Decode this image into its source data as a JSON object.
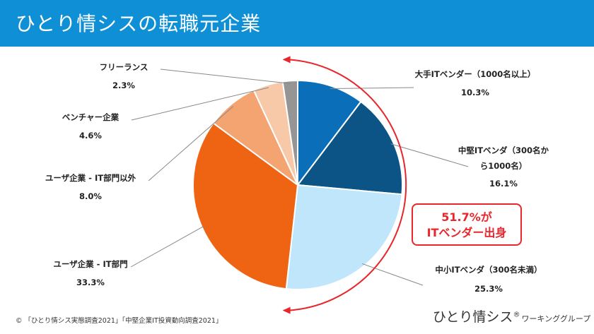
{
  "header": {
    "title": "ひとり情シスの転職元企業"
  },
  "chart_data": {
    "type": "pie",
    "title": "",
    "start_angle_deg": 0,
    "direction": "clockwise",
    "slices": [
      {
        "label": "大手ITベンダー（1000名以上）",
        "label_lines": [
          "大手ITベンダー（1000名以上）"
        ],
        "value": 10.3,
        "value_label": "10.3%",
        "color": "#0a6fb8"
      },
      {
        "label": "中堅ITベンダ（300名から1000名）",
        "label_lines": [
          "中堅ITベンダ（300名か",
          "ら1000名）"
        ],
        "value": 16.1,
        "value_label": "16.1%",
        "color": "#0b5485"
      },
      {
        "label": "中小ITベンダ（300名未満）",
        "label_lines": [
          "中小ITベンダ（300名未満）"
        ],
        "value": 25.3,
        "value_label": "25.3%",
        "color": "#bfe6fb"
      },
      {
        "label": "ユーザ企業 - IT部門",
        "label_lines": [
          "ユーザ企業 - IT部門"
        ],
        "value": 33.3,
        "value_label": "33.3%",
        "color": "#ee6413"
      },
      {
        "label": "ユーザ企業 - IT部門以外",
        "label_lines": [
          "ユーザ企業 - IT部門以外"
        ],
        "value": 8.0,
        "value_label": "8.0%",
        "color": "#f4a470"
      },
      {
        "label": "ベンチャー企業",
        "label_lines": [
          "ベンチャー企業"
        ],
        "value": 4.6,
        "value_label": "4.6%",
        "color": "#f8c9a8"
      },
      {
        "label": "フリーランス",
        "label_lines": [
          "フリーランス"
        ],
        "value": 2.3,
        "value_label": "2.3%",
        "color": "#959595"
      }
    ],
    "annotation": {
      "lines": [
        "51.7%が",
        "ITベンダー出身"
      ],
      "color": "#e8262b"
    }
  },
  "footer": {
    "copyright": "© 「ひとり情シス実態調査2021」「中堅企業IT投資動向調査2021」",
    "brand": "ひとり情シス",
    "brand_reg": "®",
    "brand_sub": "ワーキンググループ"
  }
}
